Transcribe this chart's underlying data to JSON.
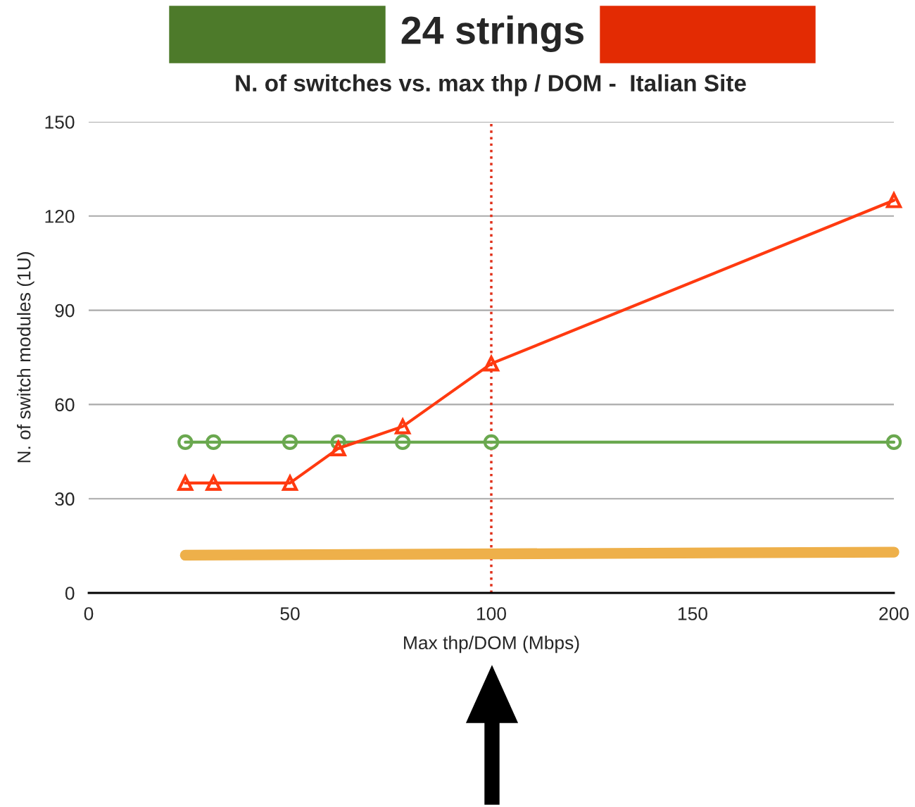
{
  "chart_data": {
    "type": "line",
    "title": "24 strings",
    "subtitle": "N. of switches vs. max thp / DOM -  Italian Site",
    "xlabel": "Max thp/DOM (Mbps)",
    "ylabel": "N. of switch modules (1U)",
    "xlim": [
      0,
      200
    ],
    "xticks": [
      0,
      50,
      100,
      150,
      200
    ],
    "ylim": [
      0,
      150
    ],
    "yticks": [
      0,
      30,
      60,
      90,
      120,
      150
    ],
    "grid": "y",
    "legend": false,
    "series": [
      {
        "color": "#6aa84f",
        "marker": "circle",
        "x": [
          24,
          31,
          50,
          62,
          78,
          100,
          200
        ],
        "values": [
          48,
          48,
          48,
          48,
          48,
          48,
          48
        ]
      },
      {
        "color": "#ff3a10",
        "marker": "triangle",
        "x": [
          24,
          31,
          50,
          62,
          78,
          100,
          200
        ],
        "values": [
          35,
          35,
          35,
          46,
          53,
          73,
          125
        ]
      },
      {
        "color": "#eeb04a",
        "marker": "none",
        "x": [
          24,
          200
        ],
        "values": [
          12,
          13
        ]
      }
    ],
    "ref_lines": [
      {
        "axis": "x",
        "value": 100,
        "color": "#e0301a",
        "line_style": "dotted"
      }
    ]
  }
}
